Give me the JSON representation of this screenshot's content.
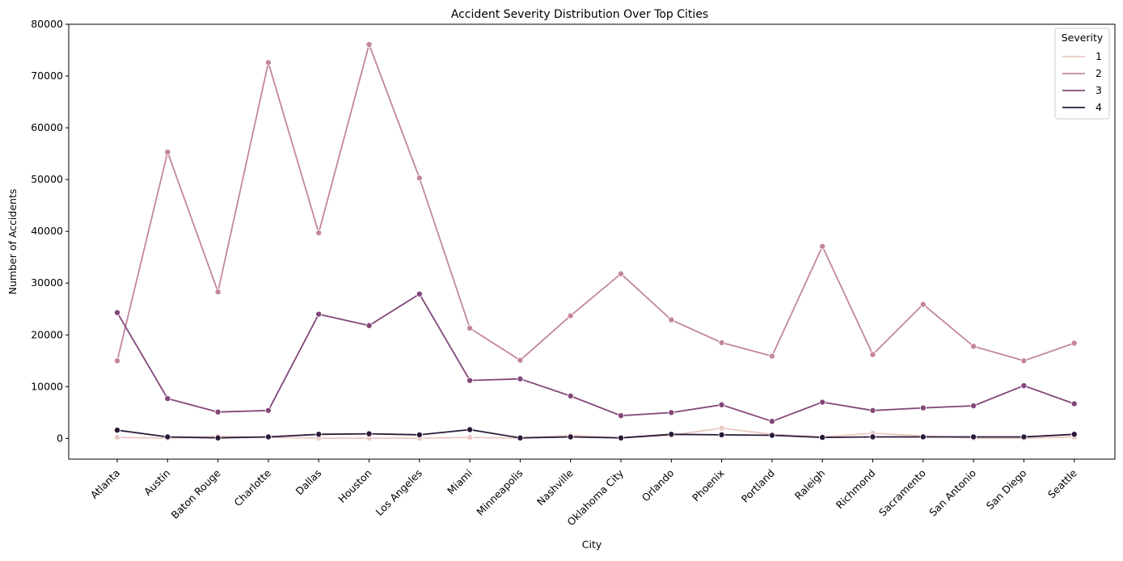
{
  "chart_data": {
    "type": "line",
    "title": "Accident Severity Distribution Over Top Cities",
    "xlabel": "City",
    "ylabel": "Number of Accidents",
    "ylim": [
      -4000,
      80000
    ],
    "yticks": [
      0,
      10000,
      20000,
      30000,
      40000,
      50000,
      60000,
      70000,
      80000
    ],
    "grid": false,
    "legend": {
      "title": "Severity",
      "position": "top-right"
    },
    "categories": [
      "Atlanta",
      "Austin",
      "Baton Rouge",
      "Charlotte",
      "Dallas",
      "Houston",
      "Los Angeles",
      "Miami",
      "Minneapolis",
      "Nashville",
      "Oklahoma City",
      "Orlando",
      "Phoenix",
      "Portland",
      "Raleigh",
      "Richmond",
      "Sacramento",
      "San Antonio",
      "San Diego",
      "Seattle"
    ],
    "series": [
      {
        "name": "1",
        "color": "#ebc8c4",
        "values": [
          200,
          50,
          400,
          200,
          50,
          50,
          50,
          200,
          50,
          600,
          100,
          600,
          2000,
          800,
          300,
          1000,
          500,
          50,
          50,
          300
        ]
      },
      {
        "name": "2",
        "color": "#c4859f",
        "values": [
          15000,
          55300,
          28300,
          72600,
          39700,
          76100,
          50300,
          21300,
          15100,
          23700,
          31800,
          22900,
          18500,
          15900,
          37100,
          16200,
          25900,
          17800,
          15000,
          18400
        ]
      },
      {
        "name": "3",
        "color": "#83477a",
        "values": [
          24300,
          7700,
          5100,
          5400,
          24000,
          21800,
          27900,
          11200,
          11500,
          8200,
          4400,
          5000,
          6500,
          3300,
          7000,
          5400,
          5900,
          6300,
          10200,
          6700
        ]
      },
      {
        "name": "4",
        "color": "#2a1a38",
        "values": [
          1600,
          300,
          100,
          300,
          800,
          900,
          700,
          1700,
          100,
          300,
          100,
          800,
          700,
          600,
          200,
          300,
          300,
          300,
          300,
          800
        ]
      }
    ]
  }
}
